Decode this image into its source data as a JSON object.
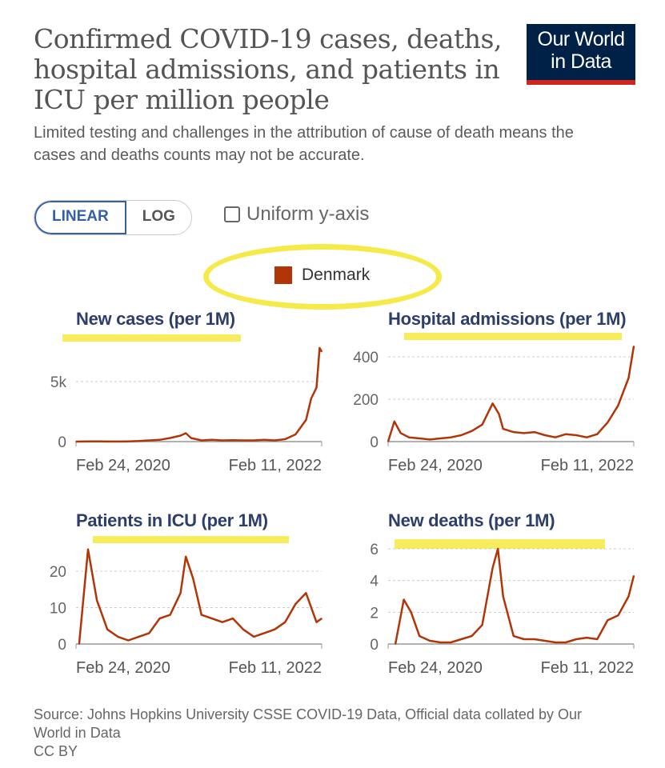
{
  "header": {
    "title": "Confirmed COVID-19 cases, deaths, hospital admissions, and patients in ICU per million people",
    "subtitle": "Limited testing and challenges in the attribution of cause of death means the cases and deaths counts may not be accurate.",
    "logo_line1": "Our World",
    "logo_line2": "in Data"
  },
  "controls": {
    "linear": "LINEAR",
    "log": "LOG",
    "uniform": "Uniform y-axis"
  },
  "legend": {
    "label": "Denmark",
    "color": "#b13507"
  },
  "footer": {
    "source": "Source: Johns Hopkins University CSSE COVID-19 Data, Official data collated by Our World in Data",
    "license": "CC BY"
  },
  "chart_data": [
    {
      "type": "line",
      "title": "New cases (per 1M)",
      "x_unit": "months since Feb 24, 2020",
      "xlabels": [
        "Feb 24, 2020",
        "Feb 11, 2022"
      ],
      "yticks": [
        0,
        5000
      ],
      "ytick_labels": [
        "0",
        "5k"
      ],
      "ylim": [
        0,
        8000
      ],
      "points": [
        [
          0,
          0
        ],
        [
          1,
          20
        ],
        [
          2,
          20
        ],
        [
          3,
          10
        ],
        [
          4,
          10
        ],
        [
          5,
          20
        ],
        [
          6,
          50
        ],
        [
          7,
          100
        ],
        [
          8,
          150
        ],
        [
          9,
          300
        ],
        [
          10,
          500
        ],
        [
          10.5,
          700
        ],
        [
          11,
          300
        ],
        [
          12,
          100
        ],
        [
          13,
          150
        ],
        [
          14,
          100
        ],
        [
          15,
          120
        ],
        [
          16,
          100
        ],
        [
          17,
          100
        ],
        [
          18,
          150
        ],
        [
          19,
          100
        ],
        [
          20,
          200
        ],
        [
          21,
          600
        ],
        [
          22,
          1800
        ],
        [
          22.5,
          3600
        ],
        [
          23,
          4500
        ],
        [
          23.3,
          7800
        ],
        [
          23.5,
          7500
        ]
      ]
    },
    {
      "type": "line",
      "title": "Hospital admissions (per 1M)",
      "x_unit": "months since Feb 24, 2020",
      "xlabels": [
        "Feb 24, 2020",
        "Feb 11, 2022"
      ],
      "yticks": [
        0,
        200,
        400
      ],
      "ytick_labels": [
        "0",
        "200",
        "400"
      ],
      "ylim": [
        0,
        460
      ],
      "points": [
        [
          0,
          0
        ],
        [
          0.6,
          95
        ],
        [
          1.2,
          40
        ],
        [
          2,
          20
        ],
        [
          3,
          15
        ],
        [
          4,
          10
        ],
        [
          5,
          15
        ],
        [
          6,
          20
        ],
        [
          7,
          30
        ],
        [
          8,
          50
        ],
        [
          9,
          80
        ],
        [
          10,
          180
        ],
        [
          10.6,
          130
        ],
        [
          11,
          60
        ],
        [
          12,
          45
        ],
        [
          13,
          40
        ],
        [
          14,
          45
        ],
        [
          15,
          30
        ],
        [
          16,
          20
        ],
        [
          17,
          35
        ],
        [
          18,
          30
        ],
        [
          19,
          20
        ],
        [
          20,
          35
        ],
        [
          21,
          90
        ],
        [
          22,
          170
        ],
        [
          23,
          300
        ],
        [
          23.5,
          450
        ]
      ]
    },
    {
      "type": "line",
      "title": "Patients in ICU (per 1M)",
      "x_unit": "months since Feb 24, 2020",
      "xlabels": [
        "Feb 24, 2020",
        "Feb 11, 2022"
      ],
      "yticks": [
        0,
        10,
        20
      ],
      "ytick_labels": [
        "0",
        "10",
        "20"
      ],
      "ylim": [
        0,
        28
      ],
      "points": [
        [
          0.3,
          0
        ],
        [
          1.15,
          26
        ],
        [
          2,
          12
        ],
        [
          3,
          4
        ],
        [
          4,
          2
        ],
        [
          5,
          1
        ],
        [
          6,
          2
        ],
        [
          7,
          3
        ],
        [
          8,
          7
        ],
        [
          9,
          8
        ],
        [
          10,
          14
        ],
        [
          10.5,
          24
        ],
        [
          11.2,
          18
        ],
        [
          12,
          8
        ],
        [
          13,
          7
        ],
        [
          14,
          6
        ],
        [
          15,
          7
        ],
        [
          16,
          4
        ],
        [
          17,
          2
        ],
        [
          18,
          3
        ],
        [
          19,
          4
        ],
        [
          20,
          6
        ],
        [
          21,
          11
        ],
        [
          22,
          14
        ],
        [
          23,
          6
        ],
        [
          23.5,
          7
        ]
      ]
    },
    {
      "type": "line",
      "title": "New deaths (per 1M)",
      "x_unit": "months since Feb 24, 2020",
      "xlabels": [
        "Feb 24, 2020",
        "Feb 11, 2022"
      ],
      "yticks": [
        0,
        2,
        4,
        6
      ],
      "ytick_labels": [
        "0",
        "2",
        "4",
        "6"
      ],
      "ylim": [
        0,
        6
      ],
      "points": [
        [
          0.7,
          0
        ],
        [
          1.5,
          2.8
        ],
        [
          2.2,
          2
        ],
        [
          3,
          0.5
        ],
        [
          4,
          0.2
        ],
        [
          5,
          0.1
        ],
        [
          6,
          0.1
        ],
        [
          7,
          0.3
        ],
        [
          8,
          0.5
        ],
        [
          9,
          1.2
        ],
        [
          10,
          4.8
        ],
        [
          10.5,
          6
        ],
        [
          11,
          3
        ],
        [
          12,
          0.5
        ],
        [
          13,
          0.3
        ],
        [
          14,
          0.3
        ],
        [
          15,
          0.2
        ],
        [
          16,
          0.1
        ],
        [
          17,
          0.1
        ],
        [
          18,
          0.3
        ],
        [
          19,
          0.4
        ],
        [
          20,
          0.3
        ],
        [
          21,
          1.5
        ],
        [
          22,
          1.8
        ],
        [
          23,
          3
        ],
        [
          23.5,
          4.3
        ]
      ]
    }
  ]
}
